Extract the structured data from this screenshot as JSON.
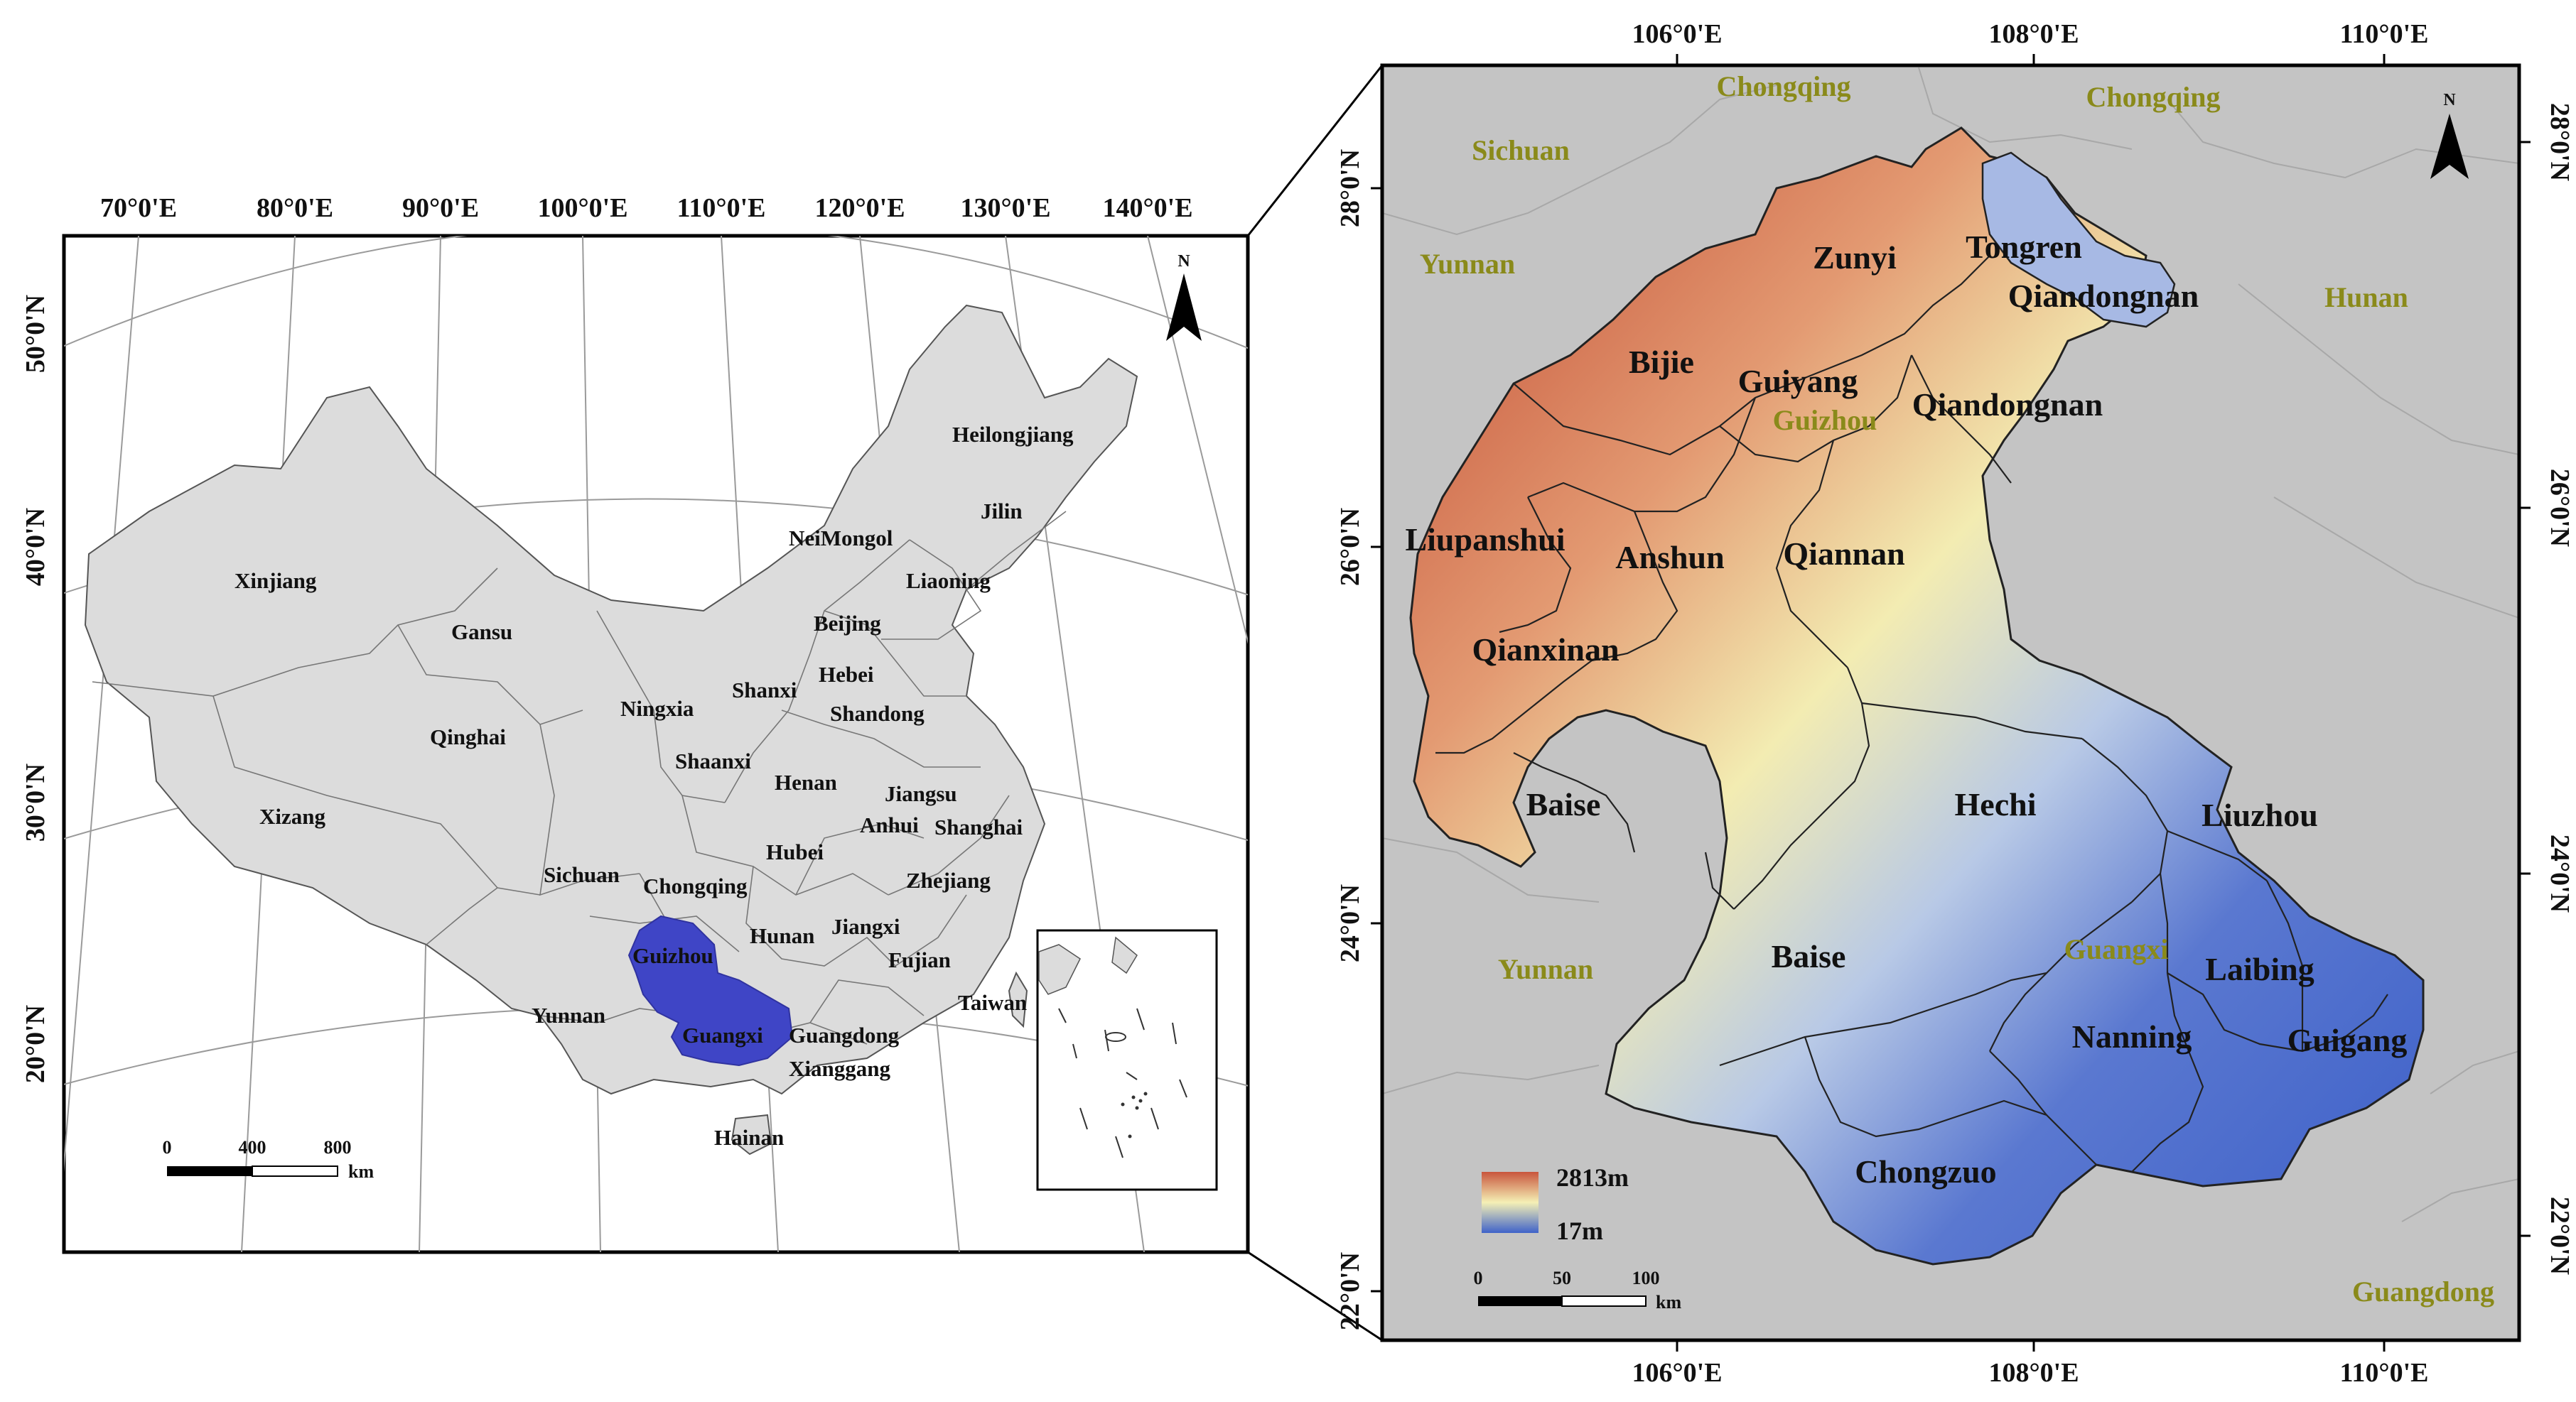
{
  "left_map": {
    "lon_labels": [
      "70°0'E",
      "80°0'E",
      "90°0'E",
      "100°0'E",
      "110°0'E",
      "120°0'E",
      "130°0'E",
      "140°0'E"
    ],
    "lat_labels": [
      "50°0'N",
      "40°0'N",
      "30°0'N",
      "20°0'N"
    ],
    "provinces": [
      "Heilongjiang",
      "Jilin",
      "Liaoning",
      "NeiMongol",
      "Beijing",
      "Hebei",
      "Xinjiang",
      "Gansu",
      "Shanxi",
      "Shandong",
      "Ningxia",
      "Qinghai",
      "Shaanxi",
      "Henan",
      "Jiangsu",
      "Anhui",
      "Shanghai",
      "Xizang",
      "Hubei",
      "Sichuan",
      "Chongqing",
      "Zhejiang",
      "Jiangxi",
      "Guizhou",
      "Hunan",
      "Fujian",
      "Yunnan",
      "Guangxi",
      "Guangdong",
      "Taiwan",
      "Xianggang",
      "Hainan"
    ],
    "north_label": "N",
    "scale": {
      "ticks": [
        "0",
        "400",
        "800"
      ],
      "unit": "km"
    },
    "colors": {
      "land": "#dcdcdc",
      "study_area": "#3f45c6"
    }
  },
  "right_map": {
    "lon_labels_top": [
      "106°0'E",
      "108°0'E",
      "110°0'E"
    ],
    "lon_labels_bottom": [
      "106°0'E",
      "108°0'E",
      "110°0'E"
    ],
    "lat_labels_left": [
      "28°0'N",
      "26°0'N",
      "24°0'N",
      "22°0'N"
    ],
    "lat_labels_right": [
      "28°0'N",
      "26°0'N",
      "24°0'N",
      "22°0'N"
    ],
    "neighbors": [
      "Chongqing",
      "Chongqing",
      "Sichuan",
      "Yunnan",
      "Hunan",
      "Yunnan",
      "Guangdong"
    ],
    "province_labels": [
      "Guizhou",
      "Guangxi"
    ],
    "cities": [
      "Zunyi",
      "Tongren",
      "Qiandongnan",
      "Bijie",
      "Guiyang",
      "Qiandongnan",
      "Liupanshui",
      "Anshun",
      "Qiannan",
      "Qianxinan",
      "Baise",
      "Hechi",
      "Liuzhou",
      "Baise",
      "Laibing",
      "Nanning",
      "Guigang",
      "Chongzuo"
    ],
    "north_label": "N",
    "legend": {
      "high": "2813m",
      "low": "17m",
      "colors": [
        "#c8553d",
        "#f5f0b5",
        "#3f62c9"
      ]
    },
    "scale": {
      "ticks": [
        "0",
        "50",
        "100"
      ],
      "unit": "km"
    }
  }
}
